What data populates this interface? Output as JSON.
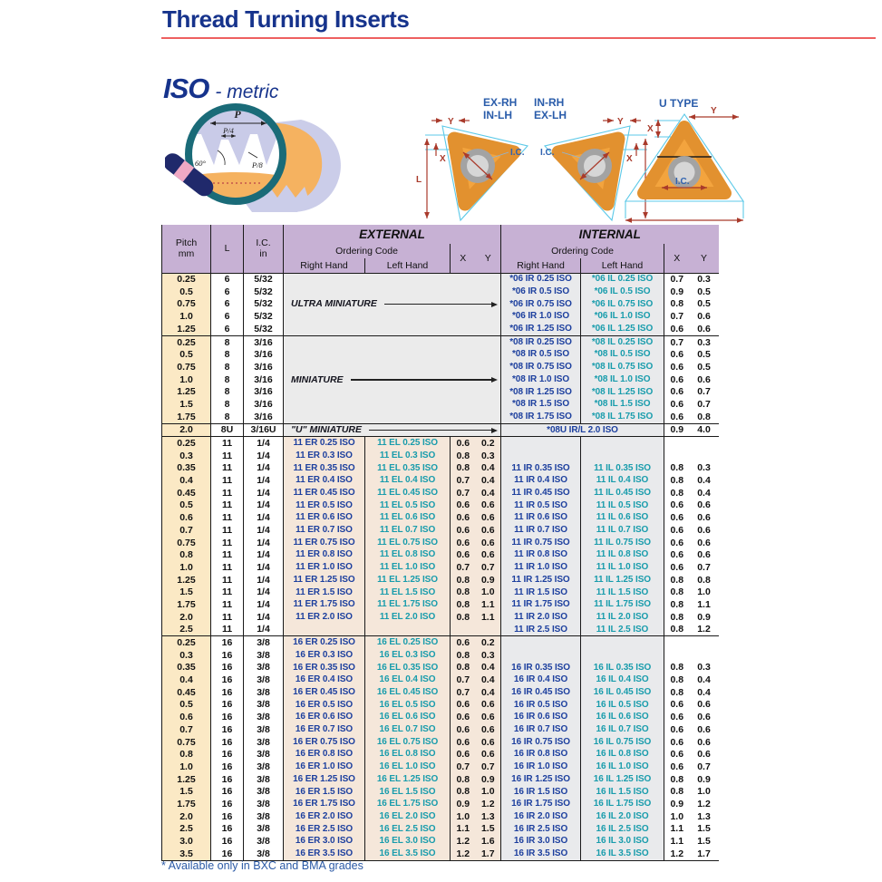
{
  "page": {
    "title": "Thread Turning Inserts",
    "series": "ISO",
    "series_suffix": "- metric",
    "footnote": "* Available only in BXC and BMA grades"
  },
  "illustration": {
    "p": "P",
    "p4": "P/4",
    "p8": "P/8",
    "angle": "60°"
  },
  "diagrams": {
    "d1_line1": "EX-RH",
    "d1_line2": "IN-LH",
    "d2_line1": "IN-RH",
    "d2_line2": "EX-LH",
    "d3": "U TYPE",
    "dim_x": "X",
    "dim_y": "Y",
    "dim_l": "L",
    "dim_ic": "I.C."
  },
  "colors": {
    "title_navy": "#16338C",
    "rule_red": "#EE6060",
    "rh_code_blue": "#1C3F9E",
    "lh_code_teal": "#189CAC",
    "header_purple": "#C7B1D4",
    "pitch_cream": "#FBE9C5",
    "external_peach": "#F5E7DA",
    "internal_gray": "#E9EAEC",
    "footnote_blue": "#2B5AA6"
  },
  "table": {
    "headers": {
      "pitch": "Pitch",
      "pitch_unit": "mm",
      "l": "L",
      "ic": "I.C.",
      "ic_unit": "in",
      "external": "EXTERNAL",
      "internal": "INTERNAL",
      "ordering_code": "Ordering Code",
      "right_hand": "Right Hand",
      "left_hand": "Left Hand",
      "x": "X",
      "y": "Y"
    },
    "groups": [
      {
        "l": "6",
        "ic": "5/32",
        "type": "merged-external",
        "label": "ULTRA MINIATURE",
        "rows": [
          {
            "pitch": "0.25",
            "ir": "*06 IR 0.25 ISO",
            "il": "*06 IL 0.25 ISO",
            "ix": "0.7",
            "iy": "0.3"
          },
          {
            "pitch": "0.5",
            "ir": "*06 IR 0.5 ISO",
            "il": "*06 IL 0.5 ISO",
            "ix": "0.9",
            "iy": "0.5"
          },
          {
            "pitch": "0.75",
            "ir": "*06 IR 0.75 ISO",
            "il": "*06 IL 0.75 ISO",
            "ix": "0.8",
            "iy": "0.5"
          },
          {
            "pitch": "1.0",
            "ir": "*06 IR 1.0 ISO",
            "il": "*06 IL 1.0 ISO",
            "ix": "0.7",
            "iy": "0.6"
          },
          {
            "pitch": "1.25",
            "ir": "*06 IR 1.25 ISO",
            "il": "*06 IL 1.25 ISO",
            "ix": "0.6",
            "iy": "0.6"
          }
        ]
      },
      {
        "l": "8",
        "ic": "3/16",
        "type": "merged-external",
        "label": "MINIATURE",
        "rows": [
          {
            "pitch": "0.25",
            "ir": "*08 IR 0.25 ISO",
            "il": "*08 IL 0.25 ISO",
            "ix": "0.7",
            "iy": "0.3"
          },
          {
            "pitch": "0.5",
            "ir": "*08 IR 0.5 ISO",
            "il": "*08 IL 0.5 ISO",
            "ix": "0.6",
            "iy": "0.5"
          },
          {
            "pitch": "0.75",
            "ir": "*08 IR 0.75 ISO",
            "il": "*08 IL 0.75 ISO",
            "ix": "0.6",
            "iy": "0.5"
          },
          {
            "pitch": "1.0",
            "ir": "*08 IR 1.0 ISO",
            "il": "*08 IL 1.0 ISO",
            "ix": "0.6",
            "iy": "0.6"
          },
          {
            "pitch": "1.25",
            "ir": "*08 IR 1.25 ISO",
            "il": "*08 IL 1.25 ISO",
            "ix": "0.6",
            "iy": "0.7"
          },
          {
            "pitch": "1.5",
            "ir": "*08 IR 1.5 ISO",
            "il": "*08 IL 1.5 ISO",
            "ix": "0.6",
            "iy": "0.7"
          },
          {
            "pitch": "1.75",
            "ir": "*08 IR 1.75 ISO",
            "il": "*08 IL 1.75 ISO",
            "ix": "0.6",
            "iy": "0.8"
          }
        ]
      },
      {
        "l": "8U",
        "ic": "3/16U",
        "type": "u-miniature",
        "label": "\"U\" MINIATURE",
        "rows": [
          {
            "pitch": "2.0",
            "code": "*08U IR/L 2.0 ISO",
            "ix": "0.9",
            "iy": "4.0"
          }
        ]
      },
      {
        "l": "11",
        "ic": "1/4",
        "type": "full",
        "rows": [
          {
            "pitch": "0.25",
            "er": "11 ER 0.25 ISO",
            "el": "11 EL 0.25 ISO",
            "ex": "0.6",
            "ey": "0.2",
            "ir": "",
            "il": "",
            "ix": "",
            "iy": ""
          },
          {
            "pitch": "0.3",
            "er": "11 ER 0.3 ISO",
            "el": "11 EL 0.3 ISO",
            "ex": "0.8",
            "ey": "0.3",
            "ir": "",
            "il": "",
            "ix": "",
            "iy": ""
          },
          {
            "pitch": "0.35",
            "er": "11 ER 0.35 ISO",
            "el": "11 EL 0.35 ISO",
            "ex": "0.8",
            "ey": "0.4",
            "ir": "11 IR 0.35 ISO",
            "il": "11 IL 0.35 ISO",
            "ix": "0.8",
            "iy": "0.3"
          },
          {
            "pitch": "0.4",
            "er": "11 ER 0.4 ISO",
            "el": "11 EL 0.4 ISO",
            "ex": "0.7",
            "ey": "0.4",
            "ir": "11 IR 0.4 ISO",
            "il": "11 IL 0.4 ISO",
            "ix": "0.8",
            "iy": "0.4"
          },
          {
            "pitch": "0.45",
            "er": "11 ER 0.45 ISO",
            "el": "11 EL 0.45 ISO",
            "ex": "0.7",
            "ey": "0.4",
            "ir": "11 IR 0.45 ISO",
            "il": "11 IL 0.45 ISO",
            "ix": "0.8",
            "iy": "0.4"
          },
          {
            "pitch": "0.5",
            "er": "11 ER 0.5 ISO",
            "el": "11 EL 0.5 ISO",
            "ex": "0.6",
            "ey": "0.6",
            "ir": "11 IR 0.5 ISO",
            "il": "11 IL 0.5 ISO",
            "ix": "0.6",
            "iy": "0.6"
          },
          {
            "pitch": "0.6",
            "er": "11 ER 0.6 ISO",
            "el": "11 EL 0.6 ISO",
            "ex": "0.6",
            "ey": "0.6",
            "ir": "11 IR 0.6 ISO",
            "il": "11 IL 0.6 ISO",
            "ix": "0.6",
            "iy": "0.6"
          },
          {
            "pitch": "0.7",
            "er": "11 ER 0.7 ISO",
            "el": "11 EL 0.7 ISO",
            "ex": "0.6",
            "ey": "0.6",
            "ir": "11 IR 0.7 ISO",
            "il": "11 IL 0.7 ISO",
            "ix": "0.6",
            "iy": "0.6"
          },
          {
            "pitch": "0.75",
            "er": "11 ER 0.75 ISO",
            "el": "11 EL 0.75 ISO",
            "ex": "0.6",
            "ey": "0.6",
            "ir": "11 IR 0.75 ISO",
            "il": "11 IL 0.75 ISO",
            "ix": "0.6",
            "iy": "0.6"
          },
          {
            "pitch": "0.8",
            "er": "11 ER 0.8 ISO",
            "el": "11 EL 0.8 ISO",
            "ex": "0.6",
            "ey": "0.6",
            "ir": "11 IR 0.8 ISO",
            "il": "11 IL 0.8 ISO",
            "ix": "0.6",
            "iy": "0.6"
          },
          {
            "pitch": "1.0",
            "er": "11 ER 1.0 ISO",
            "el": "11 EL 1.0 ISO",
            "ex": "0.7",
            "ey": "0.7",
            "ir": "11 IR 1.0 ISO",
            "il": "11 IL 1.0 ISO",
            "ix": "0.6",
            "iy": "0.7"
          },
          {
            "pitch": "1.25",
            "er": "11 ER 1.25 ISO",
            "el": "11 EL 1.25 ISO",
            "ex": "0.8",
            "ey": "0.9",
            "ir": "11 IR 1.25 ISO",
            "il": "11 IL 1.25 ISO",
            "ix": "0.8",
            "iy": "0.8"
          },
          {
            "pitch": "1.5",
            "er": "11 ER 1.5 ISO",
            "el": "11 EL 1.5 ISO",
            "ex": "0.8",
            "ey": "1.0",
            "ir": "11 IR 1.5 ISO",
            "il": "11 IL 1.5 ISO",
            "ix": "0.8",
            "iy": "1.0"
          },
          {
            "pitch": "1.75",
            "er": "11 ER 1.75 ISO",
            "el": "11 EL 1.75 ISO",
            "ex": "0.8",
            "ey": "1.1",
            "ir": "11 IR 1.75 ISO",
            "il": "11 IL 1.75 ISO",
            "ix": "0.8",
            "iy": "1.1"
          },
          {
            "pitch": "2.0",
            "er": "11 ER 2.0 ISO",
            "el": "11 EL 2.0 ISO",
            "ex": "0.8",
            "ey": "1.1",
            "ir": "11 IR 2.0 ISO",
            "il": "11 IL 2.0 ISO",
            "ix": "0.8",
            "iy": "0.9"
          },
          {
            "pitch": "2.5",
            "er": "",
            "el": "",
            "ex": "",
            "ey": "",
            "ir": "11 IR 2.5 ISO",
            "il": "11 IL 2.5 ISO",
            "ix": "0.8",
            "iy": "1.2"
          }
        ]
      },
      {
        "l": "16",
        "ic": "3/8",
        "type": "full",
        "rows": [
          {
            "pitch": "0.25",
            "er": "16 ER 0.25 ISO",
            "el": "16 EL 0.25 ISO",
            "ex": "0.6",
            "ey": "0.2",
            "ir": "",
            "il": "",
            "ix": "",
            "iy": ""
          },
          {
            "pitch": "0.3",
            "er": "16 ER 0.3 ISO",
            "el": "16 EL 0.3 ISO",
            "ex": "0.8",
            "ey": "0.3",
            "ir": "",
            "il": "",
            "ix": "",
            "iy": ""
          },
          {
            "pitch": "0.35",
            "er": "16 ER 0.35 ISO",
            "el": "16 EL 0.35 ISO",
            "ex": "0.8",
            "ey": "0.4",
            "ir": "16 IR 0.35 ISO",
            "il": "16 IL 0.35 ISO",
            "ix": "0.8",
            "iy": "0.3"
          },
          {
            "pitch": "0.4",
            "er": "16 ER 0.4 ISO",
            "el": "16 EL 0.4 ISO",
            "ex": "0.7",
            "ey": "0.4",
            "ir": "16 IR 0.4 ISO",
            "il": "16 IL 0.4 ISO",
            "ix": "0.8",
            "iy": "0.4"
          },
          {
            "pitch": "0.45",
            "er": "16 ER 0.45 ISO",
            "el": "16 EL 0.45 ISO",
            "ex": "0.7",
            "ey": "0.4",
            "ir": "16 IR 0.45 ISO",
            "il": "16 IL 0.45 ISO",
            "ix": "0.8",
            "iy": "0.4"
          },
          {
            "pitch": "0.5",
            "er": "16 ER 0.5 ISO",
            "el": "16 EL 0.5 ISO",
            "ex": "0.6",
            "ey": "0.6",
            "ir": "16 IR 0.5 ISO",
            "il": "16 IL 0.5 ISO",
            "ix": "0.6",
            "iy": "0.6"
          },
          {
            "pitch": "0.6",
            "er": "16 ER 0.6 ISO",
            "el": "16 EL 0.6 ISO",
            "ex": "0.6",
            "ey": "0.6",
            "ir": "16 IR 0.6 ISO",
            "il": "16 IL 0.6 ISO",
            "ix": "0.6",
            "iy": "0.6"
          },
          {
            "pitch": "0.7",
            "er": "16 ER 0.7 ISO",
            "el": "16 EL 0.7 ISO",
            "ex": "0.6",
            "ey": "0.6",
            "ir": "16 IR 0.7 ISO",
            "il": "16 IL 0.7 ISO",
            "ix": "0.6",
            "iy": "0.6"
          },
          {
            "pitch": "0.75",
            "er": "16 ER 0.75 ISO",
            "el": "16 EL 0.75 ISO",
            "ex": "0.6",
            "ey": "0.6",
            "ir": "16 IR 0.75 ISO",
            "il": "16 IL 0.75 ISO",
            "ix": "0.6",
            "iy": "0.6"
          },
          {
            "pitch": "0.8",
            "er": "16 ER 0.8 ISO",
            "el": "16 EL 0.8 ISO",
            "ex": "0.6",
            "ey": "0.6",
            "ir": "16 IR 0.8 ISO",
            "il": "16 IL 0.8 ISO",
            "ix": "0.6",
            "iy": "0.6"
          },
          {
            "pitch": "1.0",
            "er": "16 ER 1.0 ISO",
            "el": "16 EL 1.0 ISO",
            "ex": "0.7",
            "ey": "0.7",
            "ir": "16 IR 1.0 ISO",
            "il": "16 IL 1.0 ISO",
            "ix": "0.6",
            "iy": "0.7"
          },
          {
            "pitch": "1.25",
            "er": "16 ER 1.25 ISO",
            "el": "16 EL 1.25 ISO",
            "ex": "0.8",
            "ey": "0.9",
            "ir": "16 IR 1.25 ISO",
            "il": "16 IL 1.25 ISO",
            "ix": "0.8",
            "iy": "0.9"
          },
          {
            "pitch": "1.5",
            "er": "16 ER 1.5 ISO",
            "el": "16 EL 1.5 ISO",
            "ex": "0.8",
            "ey": "1.0",
            "ir": "16 IR 1.5 ISO",
            "il": "16 IL 1.5 ISO",
            "ix": "0.8",
            "iy": "1.0"
          },
          {
            "pitch": "1.75",
            "er": "16 ER 1.75 ISO",
            "el": "16 EL 1.75 ISO",
            "ex": "0.9",
            "ey": "1.2",
            "ir": "16 IR 1.75 ISO",
            "il": "16 IL 1.75 ISO",
            "ix": "0.9",
            "iy": "1.2"
          },
          {
            "pitch": "2.0",
            "er": "16 ER 2.0 ISO",
            "el": "16 EL 2.0 ISO",
            "ex": "1.0",
            "ey": "1.3",
            "ir": "16 IR 2.0 ISO",
            "il": "16 IL 2.0 ISO",
            "ix": "1.0",
            "iy": "1.3"
          },
          {
            "pitch": "2.5",
            "er": "16 ER 2.5 ISO",
            "el": "16 EL 2.5 ISO",
            "ex": "1.1",
            "ey": "1.5",
            "ir": "16 IR 2.5 ISO",
            "il": "16 IL 2.5 ISO",
            "ix": "1.1",
            "iy": "1.5"
          },
          {
            "pitch": "3.0",
            "er": "16 ER 3.0 ISO",
            "el": "16 EL 3.0 ISO",
            "ex": "1.2",
            "ey": "1.6",
            "ir": "16 IR 3.0 ISO",
            "il": "16 IL 3.0 ISO",
            "ix": "1.1",
            "iy": "1.5"
          },
          {
            "pitch": "3.5",
            "er": "16 ER 3.5 ISO",
            "el": "16 EL 3.5 ISO",
            "ex": "1.2",
            "ey": "1.7",
            "ir": "16 IR 3.5 ISO",
            "il": "16 IL 3.5 ISO",
            "ix": "1.2",
            "iy": "1.7"
          }
        ]
      }
    ]
  }
}
